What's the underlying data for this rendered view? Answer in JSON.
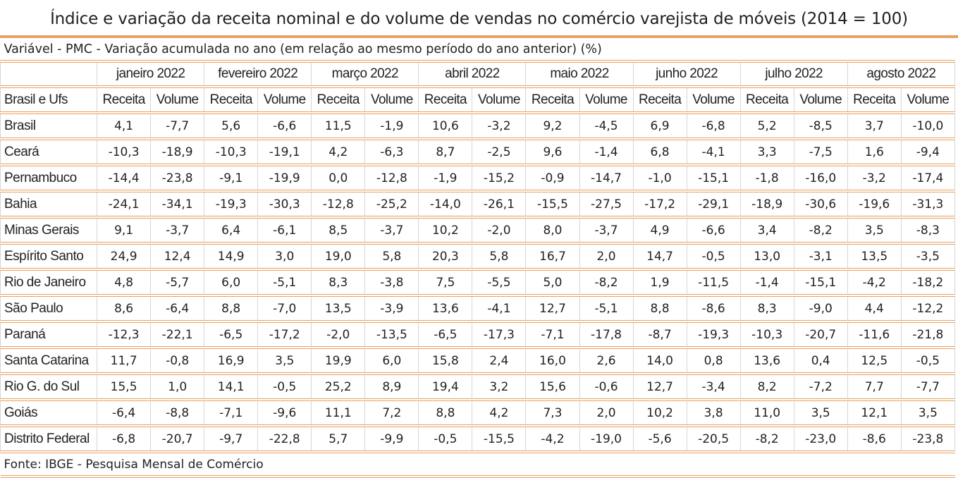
{
  "title": "Índice e variação da receita nominal e do volume de vendas no comércio varejista de móveis (2014 = 100)",
  "variable": "Variável - PMC - Variação acumulada no ano (em relação ao mesmo período do ano anterior) (%)",
  "row_header": "Brasil e Ufs",
  "months": [
    "janeiro 2022",
    "fevereiro 2022",
    "março 2022",
    "abril 2022",
    "maio 2022",
    "junho 2022",
    "julho 2022",
    "agosto 2022"
  ],
  "sub_headers": [
    "Receita",
    "Volume"
  ],
  "rows": [
    {
      "name": "Brasil",
      "values": [
        "4,1",
        "-7,7",
        "5,6",
        "-6,6",
        "11,5",
        "-1,9",
        "10,6",
        "-3,2",
        "9,2",
        "-4,5",
        "6,9",
        "-6,8",
        "5,2",
        "-8,5",
        "3,7",
        "-10,0"
      ]
    },
    {
      "name": "Ceará",
      "values": [
        "-10,3",
        "-18,9",
        "-10,3",
        "-19,1",
        "4,2",
        "-6,3",
        "8,7",
        "-2,5",
        "9,6",
        "-1,4",
        "6,8",
        "-4,1",
        "3,3",
        "-7,5",
        "1,6",
        "-9,4"
      ]
    },
    {
      "name": "Pernambuco",
      "values": [
        "-14,4",
        "-23,8",
        "-9,1",
        "-19,9",
        "0,0",
        "-12,8",
        "-1,9",
        "-15,2",
        "-0,9",
        "-14,7",
        "-1,0",
        "-15,1",
        "-1,8",
        "-16,0",
        "-3,2",
        "-17,4"
      ]
    },
    {
      "name": "Bahia",
      "values": [
        "-24,1",
        "-34,1",
        "-19,3",
        "-30,3",
        "-12,8",
        "-25,2",
        "-14,0",
        "-26,1",
        "-15,5",
        "-27,5",
        "-17,2",
        "-29,1",
        "-18,9",
        "-30,6",
        "-19,6",
        "-31,3"
      ]
    },
    {
      "name": "Minas Gerais",
      "values": [
        "9,1",
        "-3,7",
        "6,4",
        "-6,1",
        "8,5",
        "-3,7",
        "10,2",
        "-2,0",
        "8,0",
        "-3,7",
        "4,9",
        "-6,6",
        "3,4",
        "-8,2",
        "3,5",
        "-8,3"
      ]
    },
    {
      "name": "Espírito Santo",
      "values": [
        "24,9",
        "12,4",
        "14,9",
        "3,0",
        "19,0",
        "5,8",
        "20,3",
        "5,8",
        "16,7",
        "2,0",
        "14,7",
        "-0,5",
        "13,0",
        "-3,1",
        "13,5",
        "-3,5"
      ]
    },
    {
      "name": "Rio de Janeiro",
      "values": [
        "4,8",
        "-5,7",
        "6,0",
        "-5,1",
        "8,3",
        "-3,8",
        "7,5",
        "-5,5",
        "5,0",
        "-8,2",
        "1,9",
        "-11,5",
        "-1,4",
        "-15,1",
        "-4,2",
        "-18,2"
      ]
    },
    {
      "name": "São Paulo",
      "values": [
        "8,6",
        "-6,4",
        "8,8",
        "-7,0",
        "13,5",
        "-3,9",
        "13,6",
        "-4,1",
        "12,7",
        "-5,1",
        "8,8",
        "-8,6",
        "8,3",
        "-9,0",
        "4,4",
        "-12,2"
      ]
    },
    {
      "name": "Paraná",
      "values": [
        "-12,3",
        "-22,1",
        "-6,5",
        "-17,2",
        "-2,0",
        "-13,5",
        "-6,5",
        "-17,3",
        "-7,1",
        "-17,8",
        "-8,7",
        "-19,3",
        "-10,3",
        "-20,7",
        "-11,6",
        "-21,8"
      ]
    },
    {
      "name": "Santa Catarina",
      "values": [
        "11,7",
        "-0,8",
        "16,9",
        "3,5",
        "19,9",
        "6,0",
        "15,8",
        "2,4",
        "16,0",
        "2,6",
        "14,0",
        "0,8",
        "13,6",
        "0,4",
        "12,5",
        "-0,5"
      ]
    },
    {
      "name": "Rio G. do Sul",
      "values": [
        "15,5",
        "1,0",
        "14,1",
        "-0,5",
        "25,2",
        "8,9",
        "19,4",
        "3,2",
        "15,6",
        "-0,6",
        "12,7",
        "-3,4",
        "8,2",
        "-7,2",
        "7,7",
        "-7,7"
      ]
    },
    {
      "name": "Goiás",
      "values": [
        "-6,4",
        "-8,8",
        "-7,1",
        "-9,6",
        "11,1",
        "7,2",
        "8,8",
        "4,2",
        "7,3",
        "2,0",
        "10,2",
        "3,8",
        "11,0",
        "3,5",
        "12,1",
        "3,5"
      ]
    },
    {
      "name": "Distrito Federal",
      "values": [
        "-6,8",
        "-20,7",
        "-9,7",
        "-22,8",
        "5,7",
        "-9,9",
        "-0,5",
        "-15,5",
        "-4,2",
        "-19,0",
        "-5,6",
        "-20,5",
        "-8,2",
        "-23,0",
        "-8,6",
        "-23,8"
      ]
    }
  ],
  "source": "Fonte: IBGE - Pesquisa Mensal de Comércio",
  "colors": {
    "border": "#e9a060",
    "grid": "#d6d6d6"
  }
}
